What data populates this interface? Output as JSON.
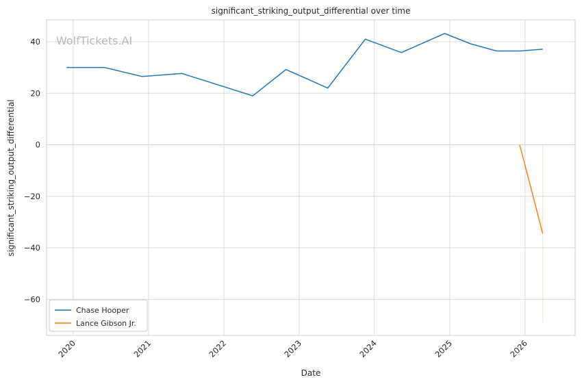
{
  "chart_data": {
    "type": "line",
    "title": "significant_striking_output_differential over time",
    "xlabel": "Date",
    "ylabel": "significant_striking_output_differential",
    "watermark": "WolfTickets.AI",
    "xlim": [
      "2019-08-25",
      "2026-09-01"
    ],
    "ylim": [
      -74,
      48.5
    ],
    "x_ticks": [
      "2020-01-01",
      "2021-01-01",
      "2022-01-01",
      "2023-01-01",
      "2024-01-01",
      "2025-01-01",
      "2026-01-01"
    ],
    "x_tick_labels": [
      "2020",
      "2021",
      "2022",
      "2023",
      "2024",
      "2025",
      "2026"
    ],
    "y_ticks": [
      -60,
      -40,
      -20,
      0,
      20,
      40
    ],
    "y_tick_labels": [
      "−60",
      "−40",
      "−20",
      "0",
      "20",
      "40"
    ],
    "grid": true,
    "legend_position": "lower-left",
    "series": [
      {
        "name": "Chase Hooper",
        "color": "#1f77b4",
        "points": [
          {
            "x": "2019-12-01",
            "y": 30
          },
          {
            "x": "2020-06-01",
            "y": 30
          },
          {
            "x": "2020-12-01",
            "y": 26.5
          },
          {
            "x": "2021-06-12",
            "y": 27.7
          },
          {
            "x": "2022-05-21",
            "y": 19
          },
          {
            "x": "2022-10-29",
            "y": 29.2
          },
          {
            "x": "2023-05-20",
            "y": 22
          },
          {
            "x": "2023-11-18",
            "y": 41
          },
          {
            "x": "2024-05-11",
            "y": 35.8
          },
          {
            "x": "2024-12-07",
            "y": 43.2
          },
          {
            "x": "2025-04-12",
            "y": 39.2
          },
          {
            "x": "2025-08-16",
            "y": 36.4
          },
          {
            "x": "2025-12-06",
            "y": 36.4
          },
          {
            "x": "2026-03-28",
            "y": 37.1
          }
        ]
      },
      {
        "name": "Lance Gibson Jr.",
        "color": "#ff7f0e",
        "points": [
          {
            "x": "2025-12-06",
            "y": 0
          },
          {
            "x": "2026-03-28",
            "y": -34.5
          }
        ],
        "band": {
          "x": "2026-03-28",
          "y_low": -69,
          "y_high": 0
        }
      }
    ]
  }
}
